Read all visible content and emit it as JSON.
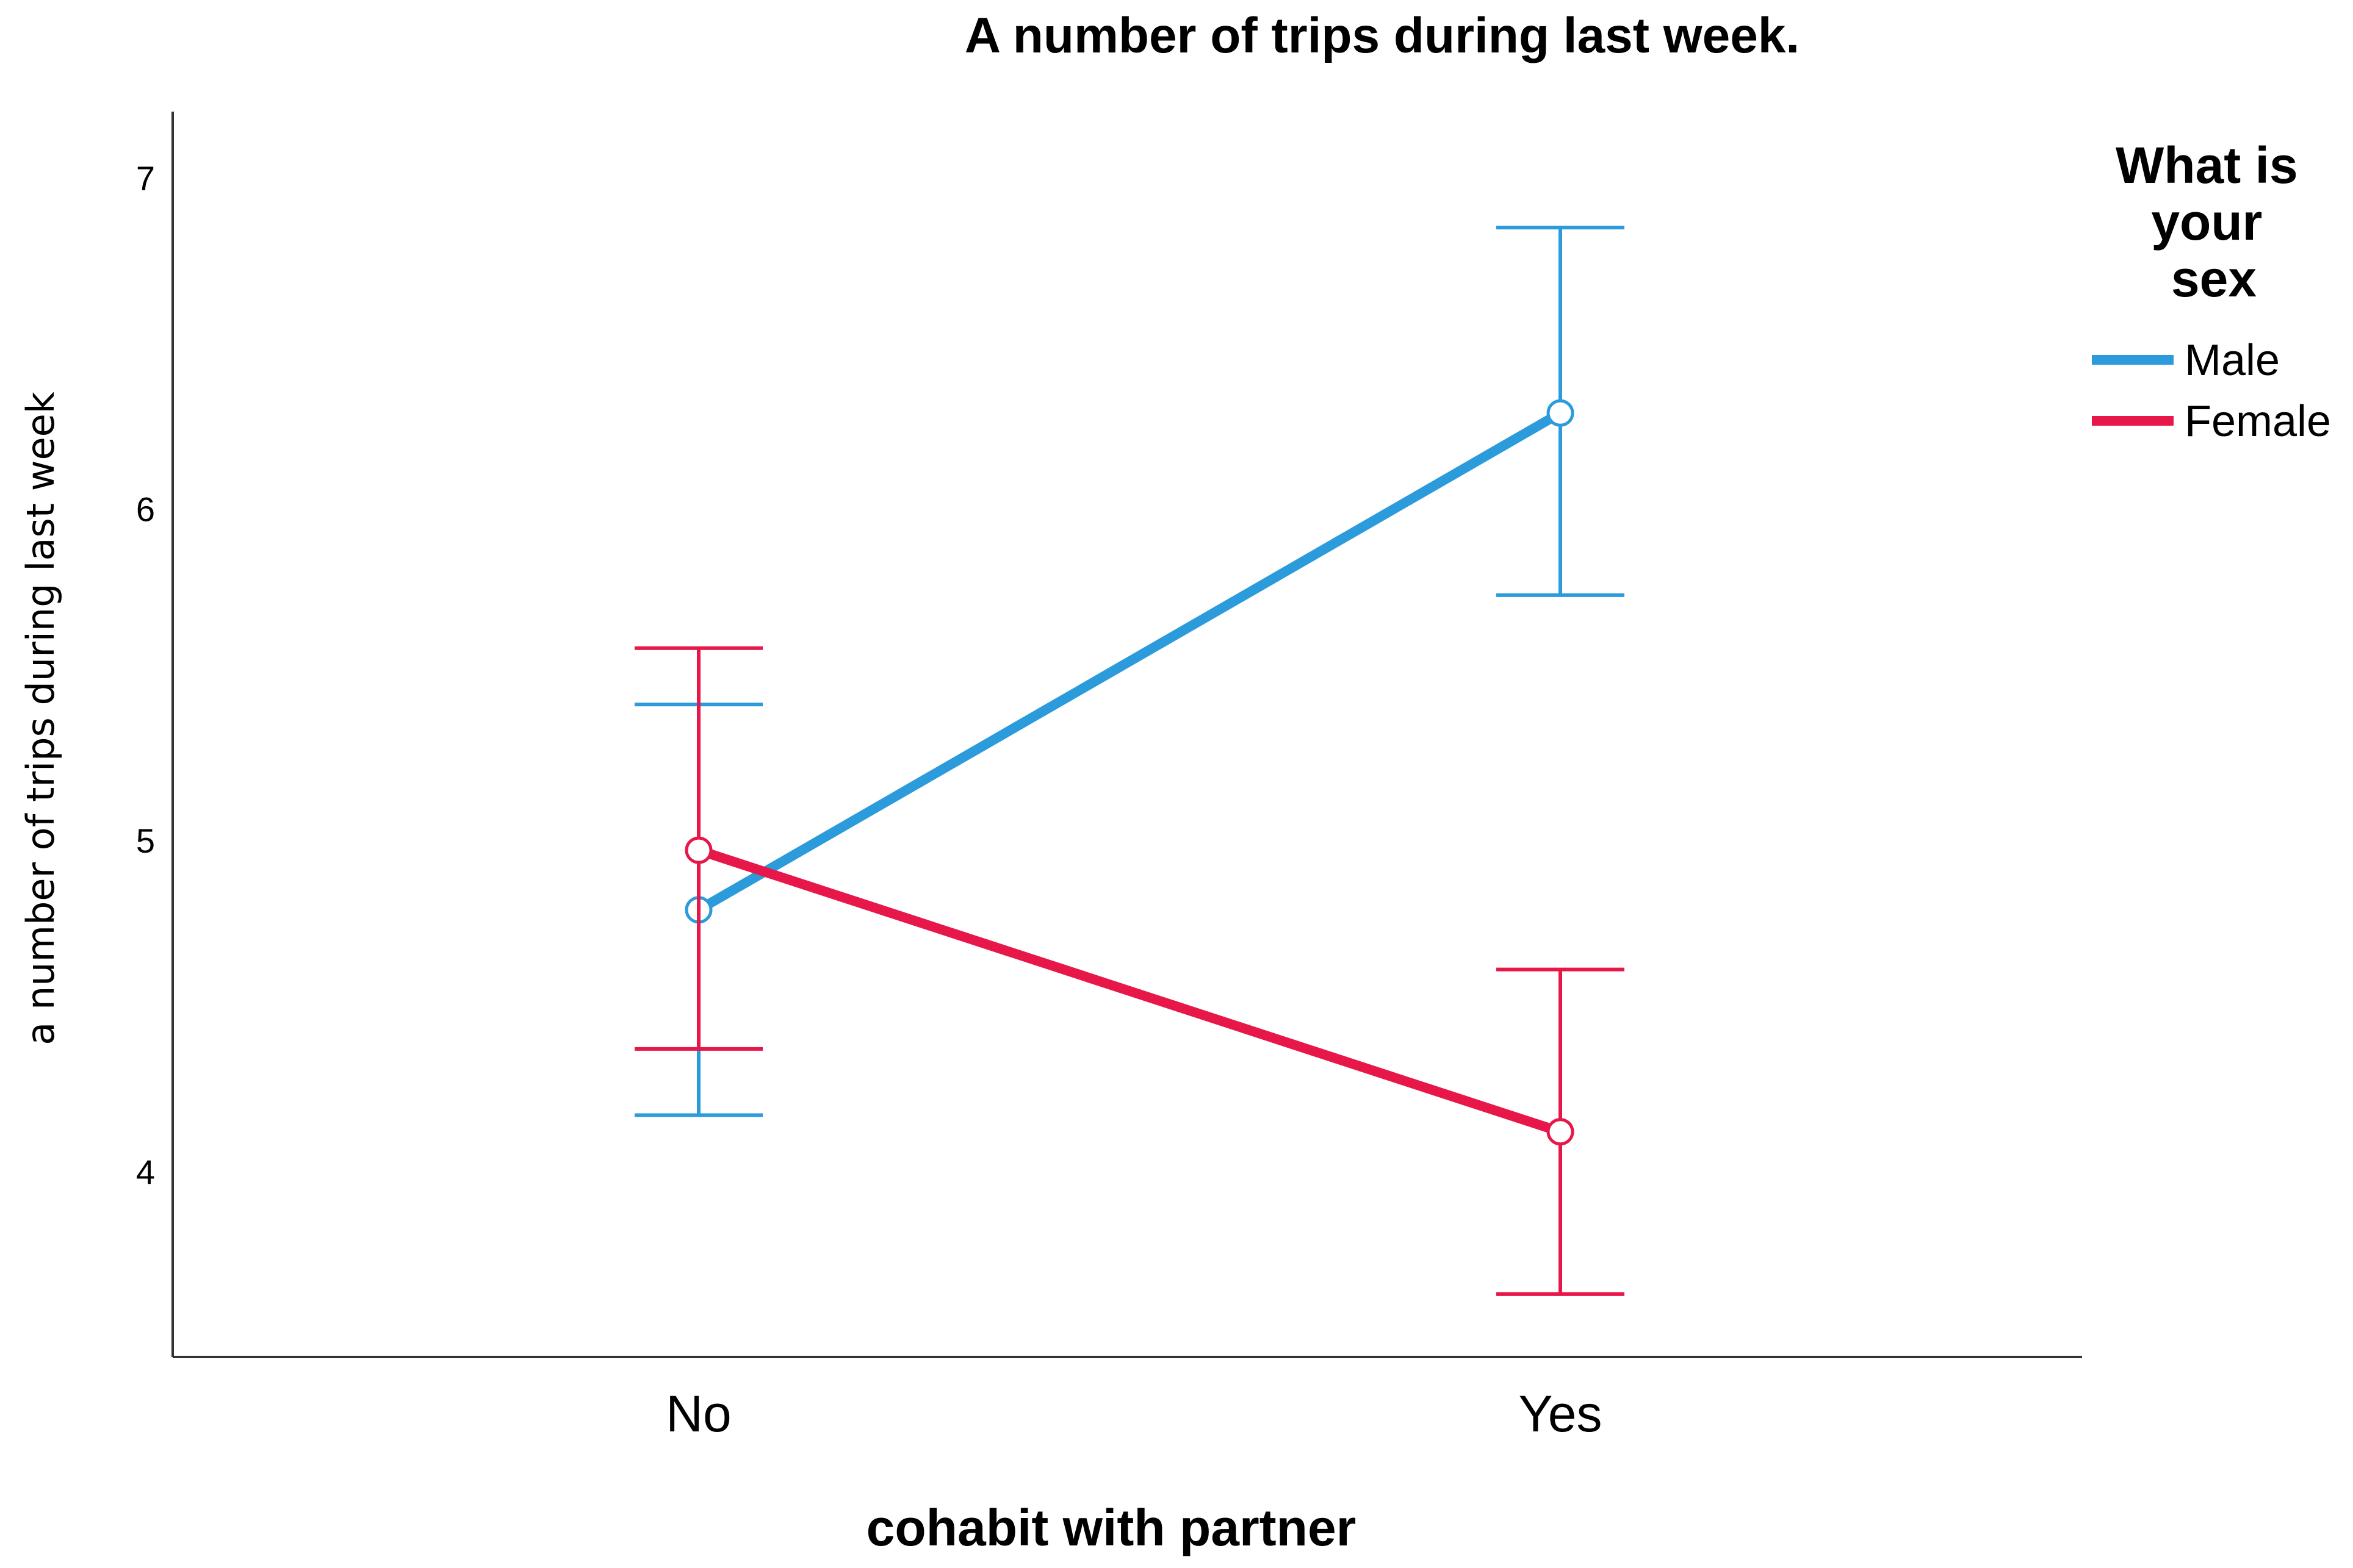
{
  "chart_data": {
    "type": "line",
    "title": "A number of trips during last week.",
    "xlabel": "cohabit with partner",
    "ylabel": "a number of trips during last week",
    "categories": [
      "No",
      "Yes"
    ],
    "ylim": [
      3.44,
      7.2
    ],
    "yticks": [
      4,
      5,
      6,
      7
    ],
    "grid": false,
    "legend": {
      "title": [
        "What is",
        "your",
        "sex"
      ],
      "placement": "right"
    },
    "series": [
      {
        "name": "Male",
        "color": "#2B9BDB",
        "values": [
          4.79,
          6.29
        ],
        "error_low": [
          4.17,
          5.74
        ],
        "error_high": [
          5.41,
          6.85
        ]
      },
      {
        "name": "Female",
        "color": "#E8174A",
        "values": [
          4.97,
          4.12
        ],
        "error_low": [
          4.37,
          3.63
        ],
        "error_high": [
          5.58,
          4.61
        ]
      }
    ]
  }
}
